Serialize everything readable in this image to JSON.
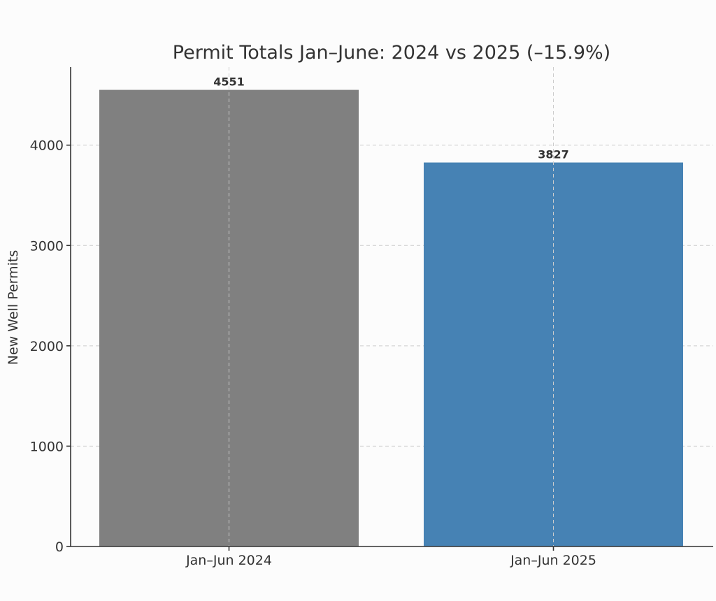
{
  "chart_data": {
    "type": "bar",
    "title": "Permit Totals Jan–June: 2024 vs 2025 (–15.9%)",
    "xlabel": "",
    "ylabel": "New Well Permits",
    "categories": [
      "Jan–Jun 2024",
      "Jan–Jun 2025"
    ],
    "values": [
      4551,
      3827
    ],
    "bar_colors": [
      "#808080",
      "#4682b4"
    ],
    "data_labels": [
      "4551",
      "3827"
    ],
    "ylim": [
      0,
      4778
    ],
    "yticks": [
      0,
      1000,
      2000,
      3000,
      4000
    ],
    "ytick_labels": [
      "0",
      "1000",
      "2000",
      "3000",
      "4000"
    ],
    "grid": true,
    "legend": false
  }
}
